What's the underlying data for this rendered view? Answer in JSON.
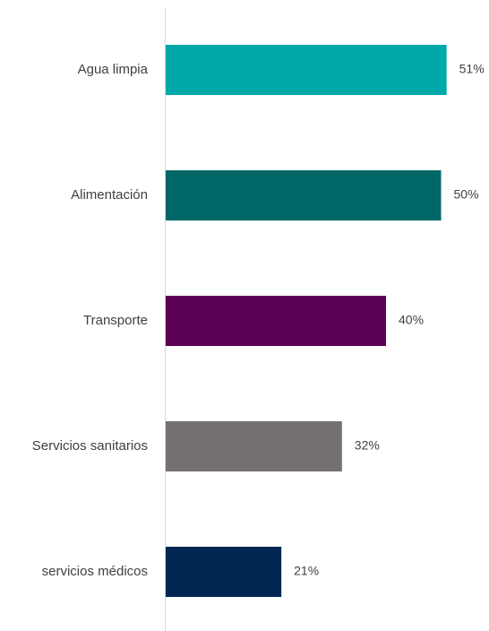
{
  "chart_data": {
    "type": "bar",
    "orientation": "horizontal",
    "categories": [
      "Agua limpia",
      "Alimentación",
      "Transporte",
      "Servicios sanitarios",
      "servicios médicos"
    ],
    "values": [
      51,
      50,
      40,
      32,
      21
    ],
    "value_labels": [
      "51%",
      "50%",
      "40%",
      "32%",
      "21%"
    ],
    "colors": [
      "#00A9A9",
      "#006666",
      "#5C0055",
      "#767171",
      "#002651"
    ],
    "xlim": [
      0,
      60
    ],
    "axis_color": "#D9D9D9",
    "text_color": "#404040",
    "grid": false,
    "legend": "none"
  }
}
